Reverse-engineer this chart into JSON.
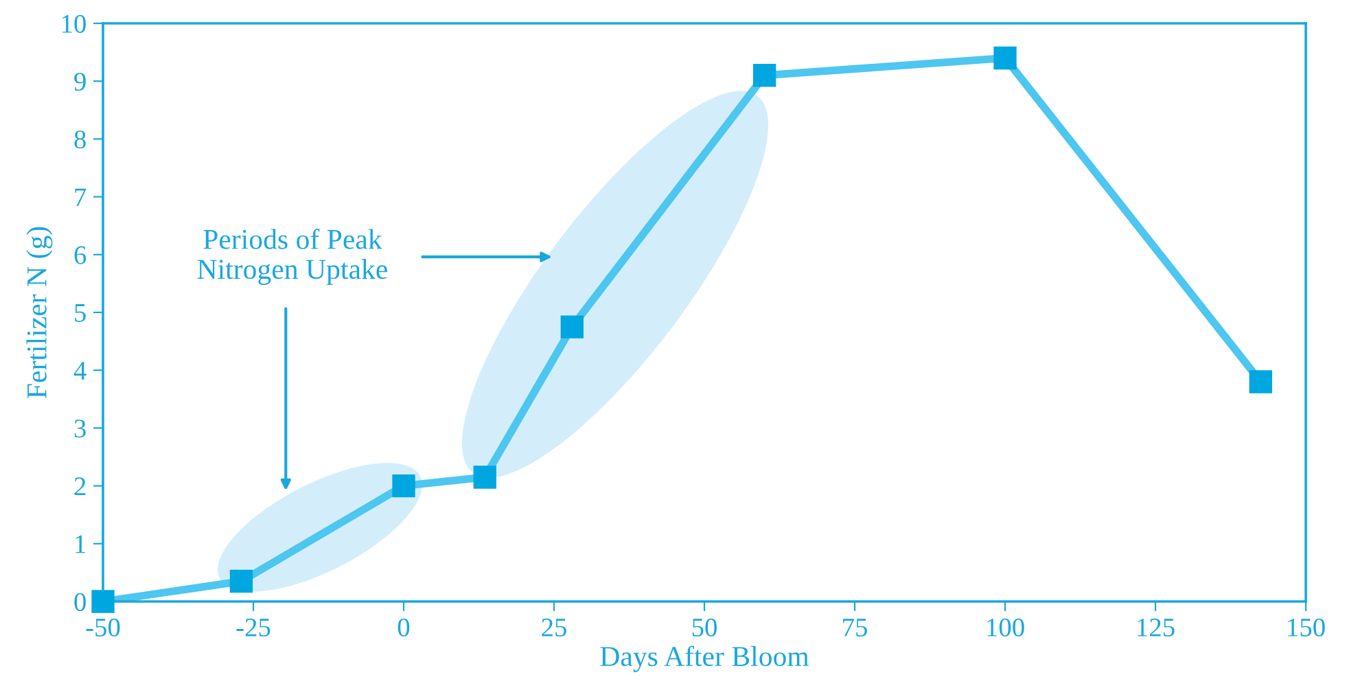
{
  "chart_data": {
    "type": "line",
    "xlabel": "Days After Bloom",
    "ylabel": "Fertilizer N (g)",
    "x": [
      -50,
      -27,
      0,
      13.5,
      28,
      60,
      100,
      142.5
    ],
    "series": [
      {
        "color": "#4dc6f0",
        "values": [
          0,
          0.35,
          2.0,
          2.15,
          4.75,
          9.1,
          9.4,
          3.8
        ]
      }
    ],
    "marker": "square",
    "line_style": "solid",
    "grid": false,
    "legend": false,
    "xlim": [
      -50,
      150
    ],
    "xticks": [
      -50,
      -25,
      0,
      25,
      50,
      75,
      100,
      125,
      150
    ],
    "ylim": [
      0,
      10
    ],
    "yticks": [
      0,
      1,
      2,
      3,
      4,
      5,
      6,
      7,
      8,
      9,
      10
    ],
    "annotations": [
      "Periods of Peak\nNitrogen Uptake"
    ]
  }
}
